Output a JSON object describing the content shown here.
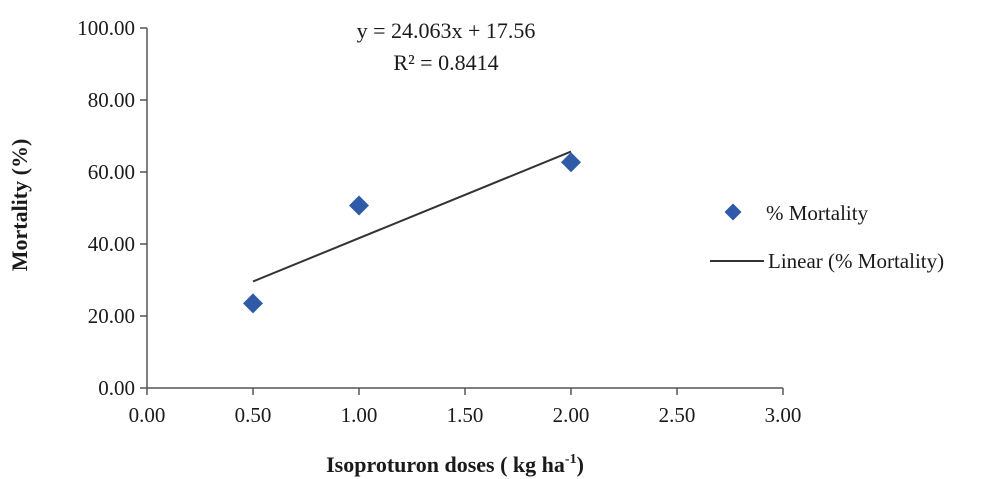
{
  "chart_data": {
    "type": "scatter",
    "title": "",
    "xlabel": "Isoproturon doses  ( kg ha",
    "xlabel_sup": "-1",
    "xlabel_end": ")",
    "ylabel": "Mortality (%)",
    "xlim": [
      0,
      3
    ],
    "ylim": [
      0,
      100
    ],
    "x_ticks": [
      "0.00",
      "0.50",
      "1.00",
      "1.50",
      "2.00",
      "2.50",
      "3.00"
    ],
    "y_ticks": [
      "0.00",
      "20.00",
      "40.00",
      "60.00",
      "80.00",
      "100.00"
    ],
    "series": [
      {
        "name": "% Mortality",
        "marker": "diamond",
        "color": "#2e5aa8",
        "points": [
          {
            "x": 0.5,
            "y": 23.5
          },
          {
            "x": 1.0,
            "y": 50.7
          },
          {
            "x": 2.0,
            "y": 62.7
          }
        ]
      }
    ],
    "trendline": {
      "name": "Linear (% Mortality)",
      "slope": 24.063,
      "intercept": 17.56,
      "x_range": [
        0.5,
        2.0
      ],
      "color": "#333333"
    },
    "equation": "y = 24.063x + 17.56",
    "r_squared": "R² = 0.8414",
    "grid": false,
    "legend_position": "right"
  }
}
